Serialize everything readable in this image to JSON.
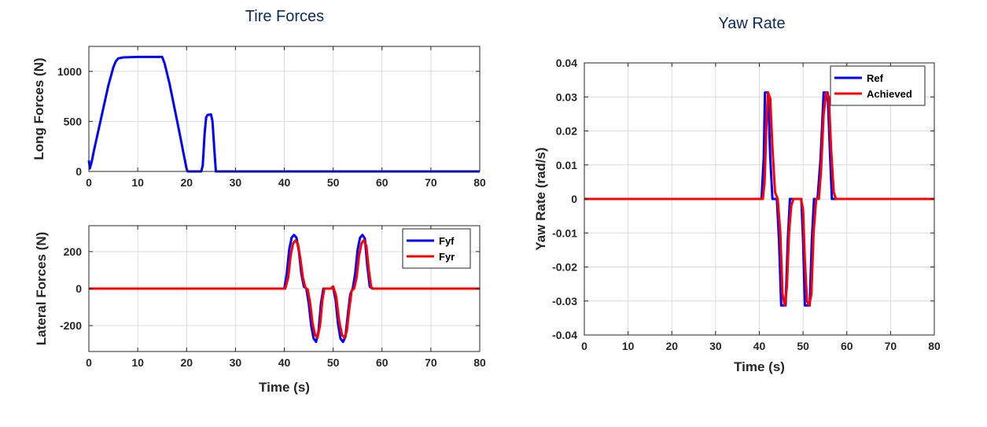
{
  "colors": {
    "blue": "#0000ff",
    "red": "#ff0000",
    "grid": "#dcdcdc",
    "title": "#0b2a5c"
  },
  "chart_data": [
    {
      "id": "long",
      "type": "line",
      "title": "Tire Forces",
      "xlabel": "",
      "ylabel": "Long Forces (N)",
      "xlim": [
        0,
        80
      ],
      "ylim": [
        0,
        1250
      ],
      "grid": true,
      "xticks": [
        0,
        10,
        20,
        30,
        40,
        50,
        60,
        70,
        80
      ],
      "yticks": [
        0,
        500,
        1000
      ],
      "legend": null,
      "series": [
        {
          "color": "blue",
          "width": 3,
          "points": [
            [
              0,
              110
            ],
            [
              0.2,
              30
            ],
            [
              0.6,
              100
            ],
            [
              1,
              200
            ],
            [
              2,
              420
            ],
            [
              3,
              640
            ],
            [
              4,
              860
            ],
            [
              5,
              1040
            ],
            [
              5.5,
              1100
            ],
            [
              6,
              1130
            ],
            [
              7,
              1140
            ],
            [
              10,
              1145
            ],
            [
              15,
              1145
            ],
            [
              15.5,
              1080
            ],
            [
              16.5,
              880
            ],
            [
              17.5,
              640
            ],
            [
              18.5,
              400
            ],
            [
              19.5,
              150
            ],
            [
              20,
              25
            ],
            [
              20.2,
              0
            ],
            [
              23,
              0
            ],
            [
              23.3,
              60
            ],
            [
              23.7,
              380
            ],
            [
              24,
              540
            ],
            [
              24.3,
              565
            ],
            [
              25,
              570
            ],
            [
              25.3,
              500
            ],
            [
              25.7,
              200
            ],
            [
              26,
              0
            ],
            [
              80,
              0
            ]
          ]
        }
      ]
    },
    {
      "id": "lat",
      "type": "line",
      "title": "",
      "xlabel": "Time (s)",
      "ylabel": "Lateral Forces (N)",
      "xlim": [
        0,
        80
      ],
      "ylim": [
        -340,
        340
      ],
      "grid": true,
      "xticks": [
        0,
        10,
        20,
        30,
        40,
        50,
        60,
        70,
        80
      ],
      "yticks": [
        -200,
        0,
        200
      ],
      "legend": "top-right",
      "series": [
        {
          "name": "Fyf",
          "color": "blue",
          "width": 3,
          "points": [
            [
              0,
              0
            ],
            [
              40,
              0
            ],
            [
              40.5,
              80
            ],
            [
              41,
              210
            ],
            [
              41.5,
              275
            ],
            [
              42,
              290
            ],
            [
              42.5,
              275
            ],
            [
              43,
              200
            ],
            [
              43.5,
              80
            ],
            [
              44,
              10
            ],
            [
              44.5,
              0
            ],
            [
              45,
              -80
            ],
            [
              45.5,
              -200
            ],
            [
              46,
              -270
            ],
            [
              46.5,
              -288
            ],
            [
              47,
              -230
            ],
            [
              47.5,
              -80
            ],
            [
              48,
              0
            ],
            [
              49.5,
              0
            ],
            [
              50,
              5
            ],
            [
              50.5,
              -60
            ],
            [
              51,
              -190
            ],
            [
              51.5,
              -270
            ],
            [
              52,
              -288
            ],
            [
              52.5,
              -260
            ],
            [
              53,
              -140
            ],
            [
              53.5,
              -30
            ],
            [
              54,
              0
            ],
            [
              54.5,
              80
            ],
            [
              55,
              210
            ],
            [
              55.5,
              275
            ],
            [
              56,
              290
            ],
            [
              56.5,
              270
            ],
            [
              57,
              120
            ],
            [
              57.5,
              10
            ],
            [
              58,
              0
            ],
            [
              80,
              0
            ]
          ]
        },
        {
          "name": "Fyr",
          "color": "red",
          "width": 3,
          "points": [
            [
              0,
              0
            ],
            [
              40.2,
              0
            ],
            [
              40.8,
              60
            ],
            [
              41.3,
              180
            ],
            [
              41.8,
              245
            ],
            [
              42.3,
              260
            ],
            [
              42.8,
              240
            ],
            [
              43.3,
              160
            ],
            [
              43.8,
              60
            ],
            [
              44.3,
              5
            ],
            [
              44.8,
              -5
            ],
            [
              45.3,
              -80
            ],
            [
              45.8,
              -190
            ],
            [
              46.3,
              -250
            ],
            [
              46.8,
              -265
            ],
            [
              47.3,
              -200
            ],
            [
              47.8,
              -60
            ],
            [
              48.2,
              0
            ],
            [
              49.5,
              0
            ],
            [
              50,
              12
            ],
            [
              50.6,
              -40
            ],
            [
              51.2,
              -170
            ],
            [
              51.8,
              -250
            ],
            [
              52.3,
              -265
            ],
            [
              52.8,
              -230
            ],
            [
              53.3,
              -110
            ],
            [
              53.8,
              -10
            ],
            [
              54.3,
              0
            ],
            [
              54.8,
              60
            ],
            [
              55.3,
              180
            ],
            [
              55.8,
              245
            ],
            [
              56.3,
              262
            ],
            [
              56.8,
              230
            ],
            [
              57.3,
              100
            ],
            [
              57.8,
              5
            ],
            [
              58.3,
              0
            ],
            [
              80,
              0
            ]
          ]
        }
      ]
    },
    {
      "id": "yaw",
      "type": "line",
      "title": "Yaw Rate",
      "xlabel": "Time (s)",
      "ylabel": "Yaw Rate (rad/s)",
      "xlim": [
        0,
        80
      ],
      "ylim": [
        -0.04,
        0.04
      ],
      "grid": true,
      "xticks": [
        0,
        10,
        20,
        30,
        40,
        50,
        60,
        70,
        80
      ],
      "yticks": [
        -0.04,
        -0.03,
        -0.02,
        -0.01,
        0,
        0.01,
        0.02,
        0.03,
        0.04
      ],
      "legend": "top-right",
      "series": [
        {
          "name": "Ref",
          "color": "blue",
          "width": 3,
          "points": [
            [
              0,
              0
            ],
            [
              40.5,
              0
            ],
            [
              41,
              0.012
            ],
            [
              41.3,
              0.0313
            ],
            [
              42,
              0.0313
            ],
            [
              42.5,
              0.012
            ],
            [
              43,
              0
            ],
            [
              44,
              0
            ],
            [
              44.5,
              -0.012
            ],
            [
              45,
              -0.0313
            ],
            [
              46,
              -0.0313
            ],
            [
              46.5,
              -0.012
            ],
            [
              47,
              0
            ],
            [
              49.3,
              0
            ],
            [
              49.6,
              0
            ],
            [
              50,
              -0.012
            ],
            [
              50.4,
              -0.0313
            ],
            [
              51.5,
              -0.0313
            ],
            [
              52,
              -0.012
            ],
            [
              52.5,
              0
            ],
            [
              53.3,
              0
            ],
            [
              54,
              0.012
            ],
            [
              54.7,
              0.0313
            ],
            [
              55.6,
              0.0313
            ],
            [
              56.2,
              0.012
            ],
            [
              56.6,
              0
            ],
            [
              80,
              0
            ]
          ]
        },
        {
          "name": "Achieved",
          "color": "red",
          "width": 3,
          "points": [
            [
              0,
              0
            ],
            [
              40.8,
              0
            ],
            [
              41.2,
              0.005
            ],
            [
              41.7,
              0.025
            ],
            [
              42,
              0.0313
            ],
            [
              42.5,
              0.0295
            ],
            [
              43,
              0.015
            ],
            [
              43.6,
              0.002
            ],
            [
              44.2,
              0
            ],
            [
              44.8,
              -0.01
            ],
            [
              45.3,
              -0.028
            ],
            [
              45.8,
              -0.0313
            ],
            [
              46.3,
              -0.026
            ],
            [
              46.8,
              -0.01
            ],
            [
              47.3,
              -0.002
            ],
            [
              47.8,
              0
            ],
            [
              49.5,
              0
            ],
            [
              50,
              -0.003
            ],
            [
              50.4,
              -0.018
            ],
            [
              50.9,
              -0.03
            ],
            [
              51.4,
              -0.0313
            ],
            [
              51.9,
              -0.028
            ],
            [
              52.4,
              -0.01
            ],
            [
              53,
              0
            ],
            [
              53.6,
              0
            ],
            [
              54.1,
              0.008
            ],
            [
              54.7,
              0.025
            ],
            [
              55.3,
              0.0313
            ],
            [
              55.9,
              0.03
            ],
            [
              56.4,
              0.015
            ],
            [
              57,
              0.002
            ],
            [
              57.5,
              0
            ],
            [
              80,
              0
            ]
          ]
        }
      ]
    }
  ]
}
